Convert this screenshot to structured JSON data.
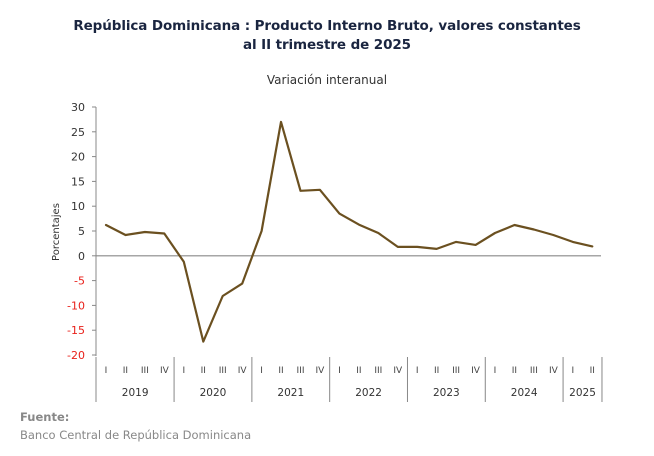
{
  "chart_data": {
    "type": "line",
    "title": "República Dominicana : Producto Interno Bruto, valores constantes al II trimestre de 2025",
    "title_lines": [
      "República Dominicana : Producto Interno Bruto, valores constantes",
      "al II trimestre de 2025"
    ],
    "subtitle": "Variación interanual",
    "xlabel": "",
    "ylabel": "Porcentajes",
    "ylim": [
      -20,
      30
    ],
    "yticks": [
      30,
      25,
      20,
      15,
      10,
      5,
      0,
      -5,
      -10,
      -15,
      -20
    ],
    "negative_tick_color": "#e8201a",
    "positive_tick_color": "#333333",
    "line_color": "#6b5020",
    "zero_line_color": "#888888",
    "grid": false,
    "legend": "none",
    "years": [
      {
        "label": "2019",
        "quarters": [
          "I",
          "II",
          "III",
          "IV"
        ]
      },
      {
        "label": "2020",
        "quarters": [
          "I",
          "II",
          "III",
          "IV"
        ]
      },
      {
        "label": "2021",
        "quarters": [
          "I",
          "II",
          "III",
          "IV"
        ]
      },
      {
        "label": "2022",
        "quarters": [
          "I",
          "II",
          "III",
          "IV"
        ]
      },
      {
        "label": "2023",
        "quarters": [
          "I",
          "II",
          "III",
          "IV"
        ]
      },
      {
        "label": "2024",
        "quarters": [
          "I",
          "II",
          "III",
          "IV"
        ]
      },
      {
        "label": "2025",
        "quarters": [
          "I",
          "II"
        ]
      }
    ],
    "series": [
      {
        "name": "Variación interanual",
        "values": [
          6.2,
          4.2,
          4.8,
          4.5,
          -1.2,
          -17.3,
          -8.1,
          -5.6,
          5.0,
          27.0,
          13.1,
          13.3,
          8.5,
          6.3,
          4.6,
          1.8,
          1.8,
          1.4,
          2.8,
          2.2,
          4.6,
          6.2,
          5.3,
          4.2,
          2.8,
          1.9
        ]
      }
    ]
  },
  "footer": {
    "source_label": "Fuente:",
    "source_text": "Banco Central de República Dominicana"
  }
}
